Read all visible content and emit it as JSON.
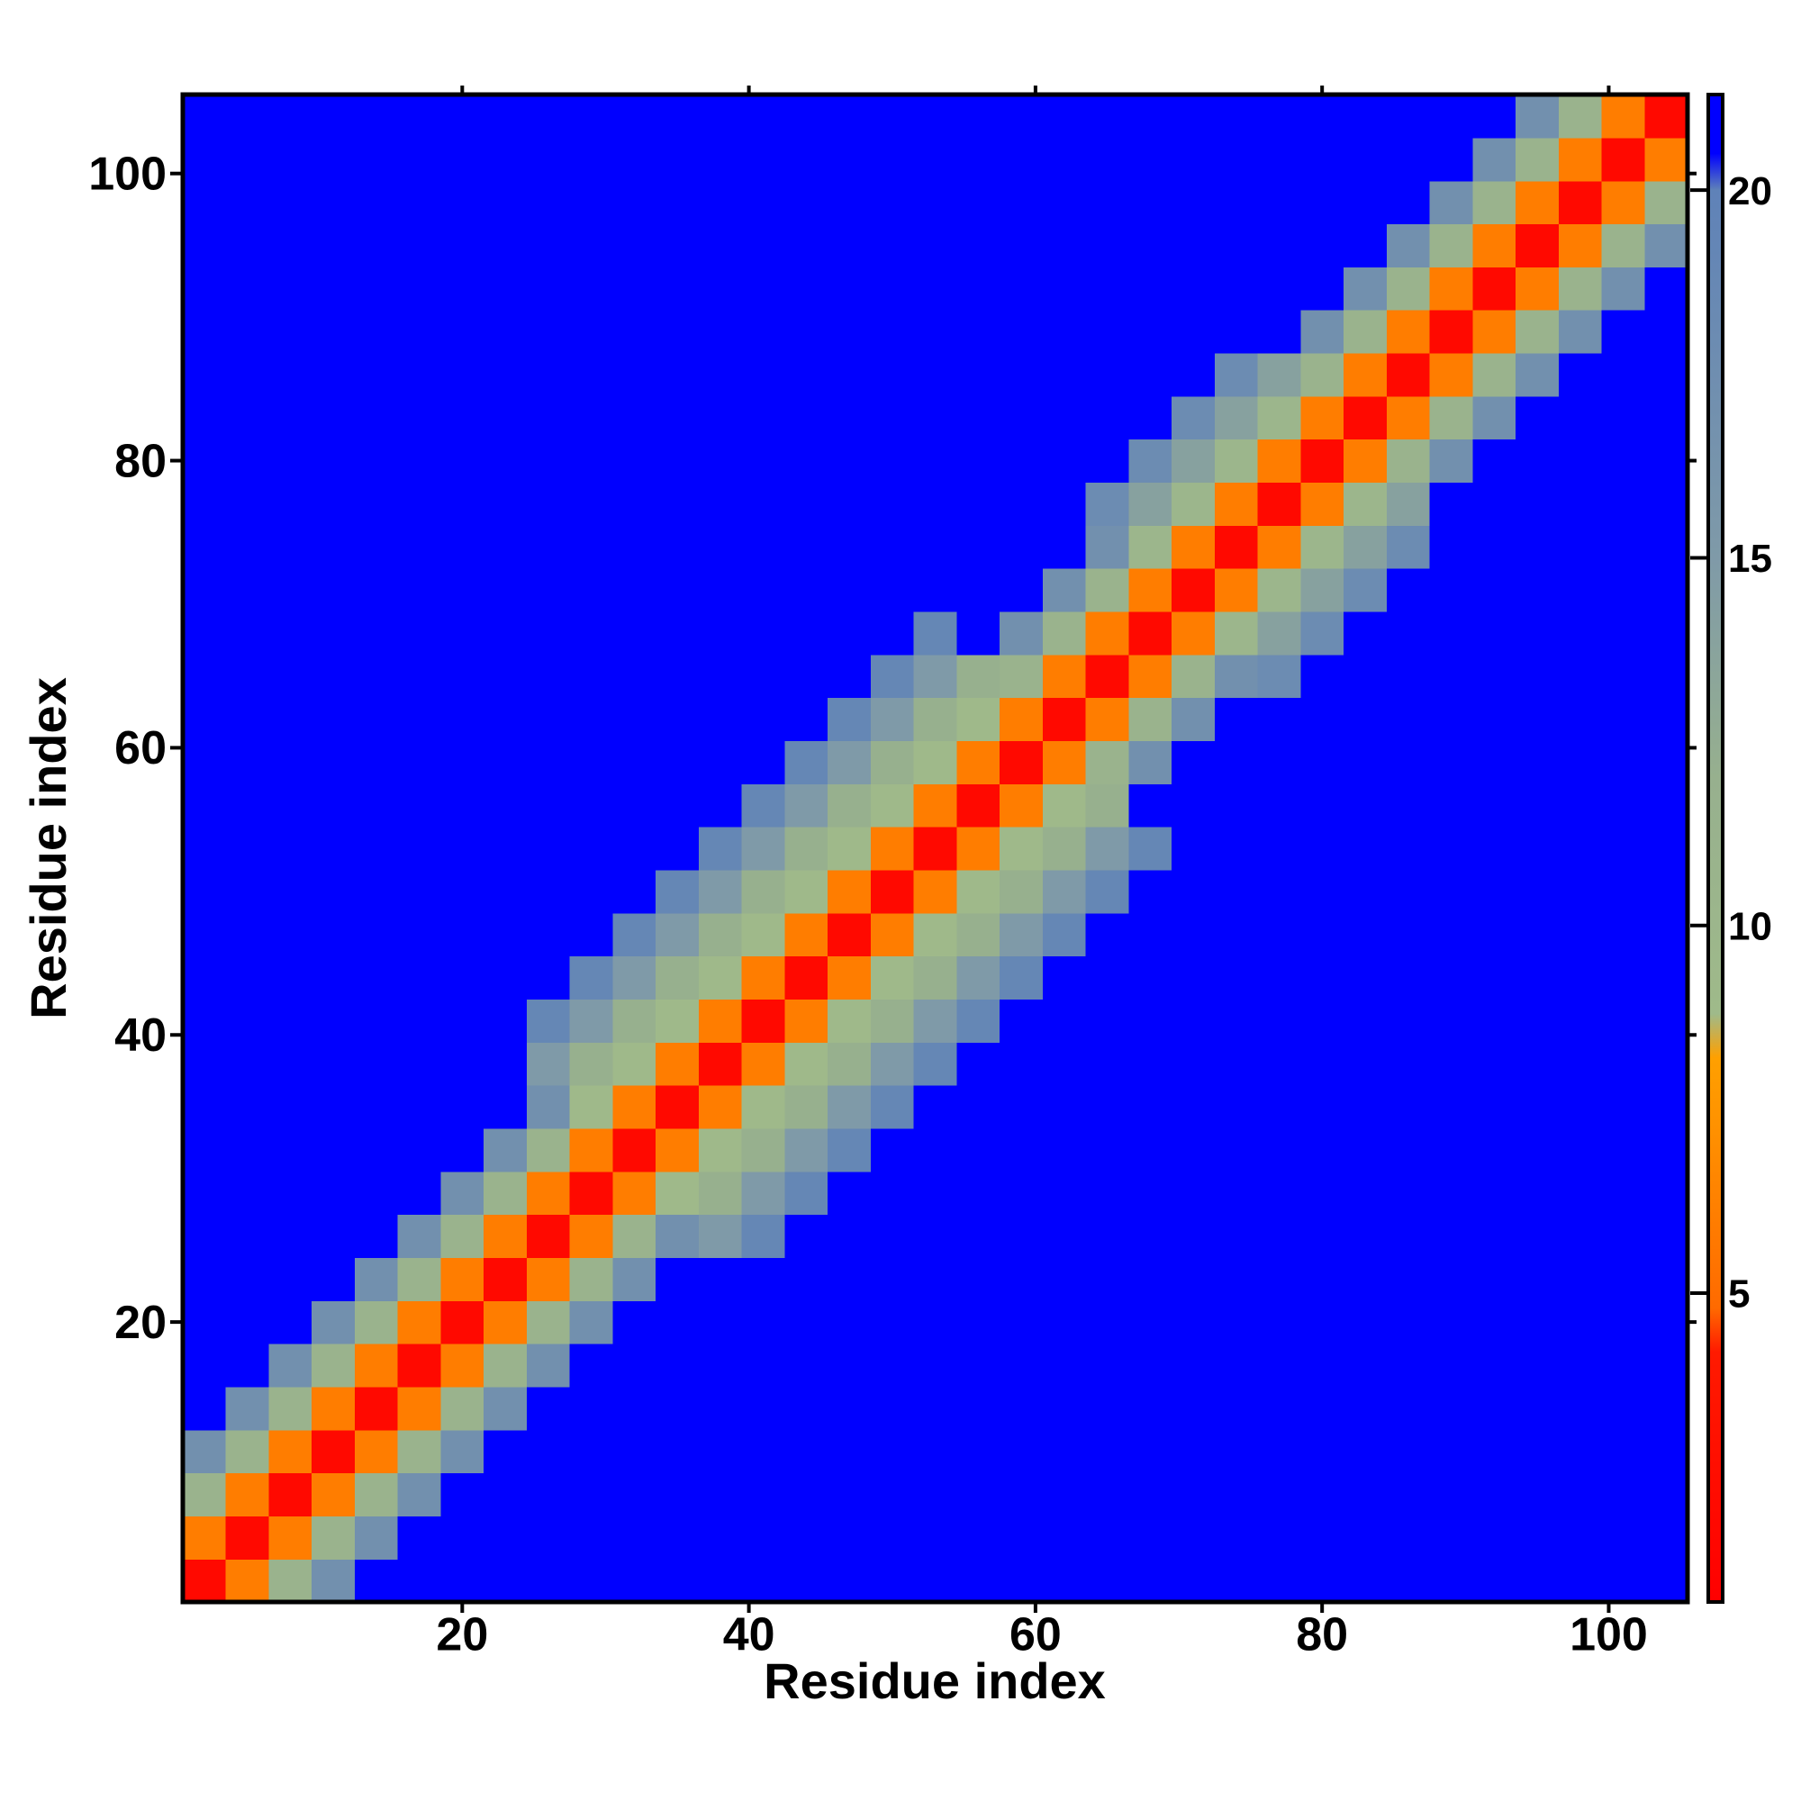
{
  "chart_data": {
    "type": "heatmap",
    "xlabel": "Residue index",
    "ylabel": "Residue index",
    "xbins": [
      0.5,
      3.5,
      6.5,
      9.5,
      12.5,
      15.5,
      18.5,
      21.5,
      24.5,
      27.5,
      30.5,
      33.5,
      36.5,
      39.5,
      42.5,
      45.5,
      48.5,
      51.5,
      54.5,
      57.5,
      60.5,
      63.5,
      66.5,
      69.5,
      72.5,
      75.5,
      78.5,
      81.5,
      84.5,
      87.5,
      90.5,
      93.5,
      96.5,
      99.5,
      102.5,
      105.5
    ],
    "ybins": [
      0.5,
      3.5,
      6.5,
      9.5,
      12.5,
      15.5,
      18.5,
      21.5,
      24.5,
      27.5,
      30.5,
      33.5,
      36.5,
      39.5,
      42.5,
      45.5,
      48.5,
      51.5,
      54.5,
      57.5,
      60.5,
      63.5,
      66.5,
      69.5,
      72.5,
      75.5,
      78.5,
      81.5,
      84.5,
      87.5,
      90.5,
      93.5,
      96.5,
      99.5,
      102.5,
      105.5
    ],
    "xlim": [
      0.5,
      105.5
    ],
    "ylim": [
      0.5,
      105.5
    ],
    "xticks": [
      20,
      40,
      60,
      80,
      100
    ],
    "yticks": [
      20,
      40,
      60,
      80,
      100
    ],
    "zlim": [
      0.8,
      21.3
    ],
    "zticks": [
      5,
      10,
      15,
      20
    ],
    "colorscale": [
      [
        0.8,
        "#ff0000"
      ],
      [
        4.2,
        "#ff1a00"
      ],
      [
        4.8,
        "#ff6a00"
      ],
      [
        8.2,
        "#ffa000"
      ],
      [
        8.8,
        "#9fba8a"
      ],
      [
        12,
        "#97b08e"
      ],
      [
        15,
        "#7f9aa8"
      ],
      [
        20,
        "#5f82b8"
      ],
      [
        20.5,
        "#0000ff"
      ],
      [
        21.3,
        "#0000ff"
      ]
    ],
    "z": [
      [
        2,
        6,
        11,
        17,
        21,
        21,
        21,
        21,
        21,
        21,
        21,
        21,
        21,
        21,
        21,
        21,
        21,
        21,
        21,
        21,
        21,
        21,
        21,
        21,
        21,
        21,
        21,
        21,
        21,
        21,
        21,
        21,
        21,
        21,
        21
      ],
      [
        6,
        2,
        6,
        11,
        17,
        21,
        21,
        21,
        21,
        21,
        21,
        21,
        21,
        21,
        21,
        21,
        21,
        21,
        21,
        21,
        21,
        21,
        21,
        21,
        21,
        21,
        21,
        21,
        21,
        21,
        21,
        21,
        21,
        21,
        21
      ],
      [
        11,
        6,
        2,
        6,
        11,
        17,
        21,
        21,
        21,
        21,
        21,
        21,
        21,
        21,
        21,
        21,
        21,
        21,
        21,
        21,
        21,
        21,
        21,
        21,
        21,
        21,
        21,
        21,
        21,
        21,
        21,
        21,
        21,
        21,
        21
      ],
      [
        17,
        11,
        6,
        2,
        6,
        11,
        17,
        21,
        21,
        21,
        21,
        21,
        21,
        21,
        21,
        21,
        21,
        21,
        21,
        21,
        21,
        21,
        21,
        21,
        21,
        21,
        21,
        21,
        21,
        21,
        21,
        21,
        21,
        21,
        21
      ],
      [
        21,
        17,
        11,
        6,
        2,
        6,
        11,
        17,
        21,
        21,
        21,
        21,
        21,
        21,
        21,
        21,
        21,
        21,
        21,
        21,
        21,
        21,
        21,
        21,
        21,
        21,
        21,
        21,
        21,
        21,
        21,
        21,
        21,
        21,
        21
      ],
      [
        21,
        21,
        17,
        11,
        6,
        2,
        6,
        11,
        17,
        21,
        21,
        21,
        21,
        21,
        21,
        21,
        21,
        21,
        21,
        21,
        21,
        21,
        21,
        21,
        21,
        21,
        21,
        21,
        21,
        21,
        21,
        21,
        21,
        21,
        21
      ],
      [
        21,
        21,
        21,
        17,
        11,
        6,
        2,
        6,
        11,
        17,
        21,
        21,
        21,
        21,
        21,
        21,
        21,
        21,
        21,
        21,
        21,
        21,
        21,
        21,
        21,
        21,
        21,
        21,
        21,
        21,
        21,
        21,
        21,
        21,
        21
      ],
      [
        21,
        21,
        21,
        21,
        17,
        11,
        6,
        2,
        6,
        11,
        17,
        21,
        21,
        21,
        21,
        21,
        21,
        21,
        21,
        21,
        21,
        21,
        21,
        21,
        21,
        21,
        21,
        21,
        21,
        21,
        21,
        21,
        21,
        21,
        21
      ],
      [
        21,
        21,
        21,
        21,
        21,
        17,
        11,
        6,
        2,
        6,
        11,
        17,
        15,
        19,
        21,
        21,
        21,
        21,
        21,
        21,
        21,
        21,
        21,
        21,
        21,
        21,
        21,
        21,
        21,
        21,
        21,
        21,
        21,
        21,
        21
      ],
      [
        21,
        21,
        21,
        21,
        21,
        21,
        17,
        11,
        6,
        2,
        6,
        9,
        12,
        15,
        19,
        21,
        21,
        21,
        21,
        21,
        21,
        21,
        21,
        21,
        21,
        21,
        21,
        21,
        21,
        21,
        21,
        21,
        21,
        21,
        21
      ],
      [
        21,
        21,
        21,
        21,
        21,
        21,
        21,
        17,
        11,
        6,
        2,
        6,
        9,
        12,
        15,
        19,
        21,
        21,
        21,
        21,
        21,
        21,
        21,
        21,
        21,
        21,
        21,
        21,
        21,
        21,
        21,
        21,
        21,
        21,
        21
      ],
      [
        21,
        21,
        21,
        21,
        21,
        21,
        21,
        21,
        17,
        9,
        6,
        2,
        6,
        9,
        12,
        15,
        19,
        21,
        21,
        21,
        21,
        21,
        21,
        21,
        21,
        21,
        21,
        21,
        21,
        21,
        21,
        21,
        21,
        21,
        21
      ],
      [
        21,
        21,
        21,
        21,
        21,
        21,
        21,
        21,
        15,
        12,
        9,
        6,
        2,
        6,
        9,
        12,
        15,
        19,
        21,
        21,
        21,
        21,
        21,
        21,
        21,
        21,
        21,
        21,
        21,
        21,
        21,
        21,
        21,
        21,
        21
      ],
      [
        21,
        21,
        21,
        21,
        21,
        21,
        21,
        21,
        19,
        15,
        12,
        9,
        6,
        2,
        6,
        9,
        12,
        15,
        19,
        21,
        21,
        21,
        21,
        21,
        21,
        21,
        21,
        21,
        21,
        21,
        21,
        21,
        21,
        21,
        21
      ],
      [
        21,
        21,
        21,
        21,
        21,
        21,
        21,
        21,
        21,
        19,
        15,
        12,
        9,
        6,
        2,
        6,
        9,
        12,
        15,
        19,
        21,
        21,
        21,
        21,
        21,
        21,
        21,
        21,
        21,
        21,
        21,
        21,
        21,
        21,
        21
      ],
      [
        21,
        21,
        21,
        21,
        21,
        21,
        21,
        21,
        21,
        21,
        19,
        15,
        12,
        9,
        6,
        2,
        6,
        9,
        12,
        15,
        19,
        21,
        21,
        21,
        21,
        21,
        21,
        21,
        21,
        21,
        21,
        21,
        21,
        21,
        21
      ],
      [
        21,
        21,
        21,
        21,
        21,
        21,
        21,
        21,
        21,
        21,
        21,
        19,
        15,
        12,
        9,
        6,
        2,
        6,
        9,
        12,
        15,
        19,
        21,
        21,
        21,
        21,
        21,
        21,
        21,
        21,
        21,
        21,
        21,
        21,
        21
      ],
      [
        21,
        21,
        21,
        21,
        21,
        21,
        21,
        21,
        21,
        21,
        21,
        21,
        19,
        15,
        12,
        9,
        6,
        2,
        6,
        9,
        12,
        15,
        19,
        21,
        21,
        21,
        21,
        21,
        21,
        21,
        21,
        21,
        21,
        21,
        21
      ],
      [
        21,
        21,
        21,
        21,
        21,
        21,
        21,
        21,
        21,
        21,
        21,
        21,
        21,
        19,
        15,
        12,
        9,
        6,
        2,
        6,
        9,
        12,
        21,
        21,
        21,
        21,
        21,
        21,
        21,
        21,
        21,
        21,
        21,
        21,
        21
      ],
      [
        21,
        21,
        21,
        21,
        21,
        21,
        21,
        21,
        21,
        21,
        21,
        21,
        21,
        21,
        19,
        15,
        12,
        9,
        6,
        2,
        6,
        11,
        17,
        21,
        21,
        21,
        21,
        21,
        21,
        21,
        21,
        21,
        21,
        21,
        21
      ],
      [
        21,
        21,
        21,
        21,
        21,
        21,
        21,
        21,
        21,
        21,
        21,
        21,
        21,
        21,
        21,
        19,
        15,
        12,
        9,
        6,
        2,
        6,
        11,
        17,
        21,
        21,
        21,
        21,
        21,
        21,
        21,
        21,
        21,
        21,
        21
      ],
      [
        21,
        21,
        21,
        21,
        21,
        21,
        21,
        21,
        21,
        21,
        21,
        21,
        21,
        21,
        21,
        21,
        19,
        15,
        12,
        11,
        6,
        2,
        6,
        11,
        17,
        18,
        21,
        21,
        21,
        21,
        21,
        21,
        21,
        21,
        21
      ],
      [
        21,
        21,
        21,
        21,
        21,
        21,
        21,
        21,
        21,
        21,
        21,
        21,
        21,
        21,
        21,
        21,
        21,
        19,
        21,
        17,
        11,
        6,
        2,
        6,
        10,
        14,
        18,
        21,
        21,
        21,
        21,
        21,
        21,
        21,
        21
      ],
      [
        21,
        21,
        21,
        21,
        21,
        21,
        21,
        21,
        21,
        21,
        21,
        21,
        21,
        21,
        21,
        21,
        21,
        21,
        21,
        21,
        17,
        11,
        6,
        2,
        6,
        10,
        14,
        18,
        21,
        21,
        21,
        21,
        21,
        21,
        21
      ],
      [
        21,
        21,
        21,
        21,
        21,
        21,
        21,
        21,
        21,
        21,
        21,
        21,
        21,
        21,
        21,
        21,
        21,
        21,
        21,
        21,
        21,
        17,
        10,
        6,
        2,
        6,
        10,
        14,
        18,
        21,
        21,
        21,
        21,
        21,
        21
      ],
      [
        21,
        21,
        21,
        21,
        21,
        21,
        21,
        21,
        21,
        21,
        21,
        21,
        21,
        21,
        21,
        21,
        21,
        21,
        21,
        21,
        21,
        18,
        14,
        10,
        6,
        2,
        6,
        10,
        14,
        21,
        21,
        21,
        21,
        21,
        21
      ],
      [
        21,
        21,
        21,
        21,
        21,
        21,
        21,
        21,
        21,
        21,
        21,
        21,
        21,
        21,
        21,
        21,
        21,
        21,
        21,
        21,
        21,
        21,
        18,
        14,
        10,
        6,
        2,
        6,
        11,
        17,
        21,
        21,
        21,
        21,
        21
      ],
      [
        21,
        21,
        21,
        21,
        21,
        21,
        21,
        21,
        21,
        21,
        21,
        21,
        21,
        21,
        21,
        21,
        21,
        21,
        21,
        21,
        21,
        21,
        21,
        18,
        14,
        10,
        6,
        2,
        6,
        11,
        17,
        21,
        21,
        21,
        21
      ],
      [
        21,
        21,
        21,
        21,
        21,
        21,
        21,
        21,
        21,
        21,
        21,
        21,
        21,
        21,
        21,
        21,
        21,
        21,
        21,
        21,
        21,
        21,
        21,
        21,
        18,
        14,
        11,
        6,
        2,
        6,
        11,
        17,
        21,
        21,
        21
      ],
      [
        21,
        21,
        21,
        21,
        21,
        21,
        21,
        21,
        21,
        21,
        21,
        21,
        21,
        21,
        21,
        21,
        21,
        21,
        21,
        21,
        21,
        21,
        21,
        21,
        21,
        21,
        17,
        11,
        6,
        2,
        6,
        11,
        17,
        21,
        21
      ],
      [
        21,
        21,
        21,
        21,
        21,
        21,
        21,
        21,
        21,
        21,
        21,
        21,
        21,
        21,
        21,
        21,
        21,
        21,
        21,
        21,
        21,
        21,
        21,
        21,
        21,
        21,
        21,
        17,
        11,
        6,
        2,
        6,
        11,
        17,
        21
      ],
      [
        21,
        21,
        21,
        21,
        21,
        21,
        21,
        21,
        21,
        21,
        21,
        21,
        21,
        21,
        21,
        21,
        21,
        21,
        21,
        21,
        21,
        21,
        21,
        21,
        21,
        21,
        21,
        21,
        17,
        11,
        6,
        2,
        6,
        11,
        17
      ],
      [
        21,
        21,
        21,
        21,
        21,
        21,
        21,
        21,
        21,
        21,
        21,
        21,
        21,
        21,
        21,
        21,
        21,
        21,
        21,
        21,
        21,
        21,
        21,
        21,
        21,
        21,
        21,
        21,
        21,
        17,
        11,
        6,
        2,
        6,
        11
      ],
      [
        21,
        21,
        21,
        21,
        21,
        21,
        21,
        21,
        21,
        21,
        21,
        21,
        21,
        21,
        21,
        21,
        21,
        21,
        21,
        21,
        21,
        21,
        21,
        21,
        21,
        21,
        21,
        21,
        21,
        21,
        17,
        11,
        6,
        2,
        6
      ],
      [
        21,
        21,
        21,
        21,
        21,
        21,
        21,
        21,
        21,
        21,
        21,
        21,
        21,
        21,
        21,
        21,
        21,
        21,
        21,
        21,
        21,
        21,
        21,
        21,
        21,
        21,
        21,
        21,
        21,
        21,
        21,
        17,
        11,
        6,
        2
      ]
    ]
  }
}
